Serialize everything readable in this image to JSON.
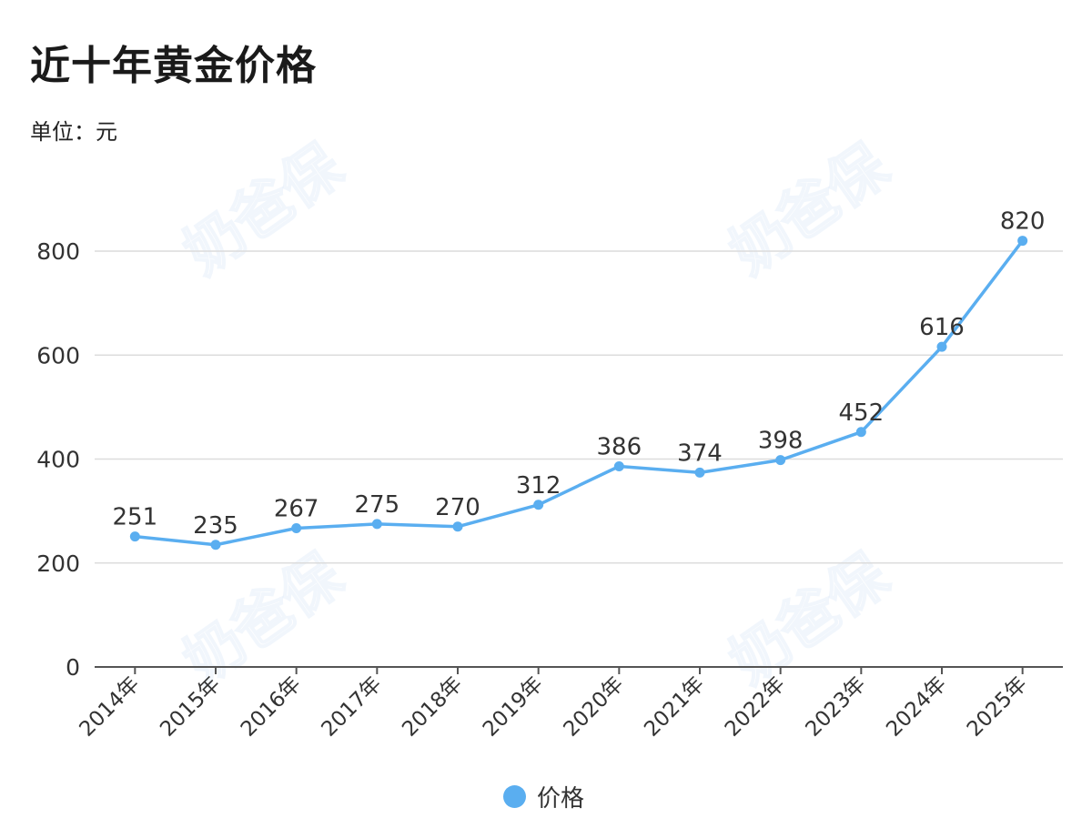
{
  "title": "近十年黄金价格",
  "unit_label": "单位：元",
  "legend": {
    "label": "价格",
    "color": "#5aaef0"
  },
  "watermarks": [
    "奶爸保",
    "奶爸保",
    "奶爸保",
    "奶爸保"
  ],
  "chart_data": {
    "type": "line",
    "title": "近十年黄金价格",
    "subtitle": "单位：元",
    "xlabel": "",
    "ylabel": "元",
    "categories": [
      "2014年",
      "2015年",
      "2016年",
      "2017年",
      "2018年",
      "2019年",
      "2020年",
      "2021年",
      "2022年",
      "2023年",
      "2024年",
      "2025年"
    ],
    "series": [
      {
        "name": "价格",
        "color": "#5aaef0",
        "values": [
          251,
          235,
          267,
          275,
          270,
          312,
          386,
          374,
          398,
          452,
          616,
          820
        ]
      }
    ],
    "ylim": [
      0,
      800
    ],
    "yticks": [
      0,
      200,
      400,
      600,
      800
    ],
    "grid": true,
    "legend_position": "bottom",
    "data_labels": true
  }
}
